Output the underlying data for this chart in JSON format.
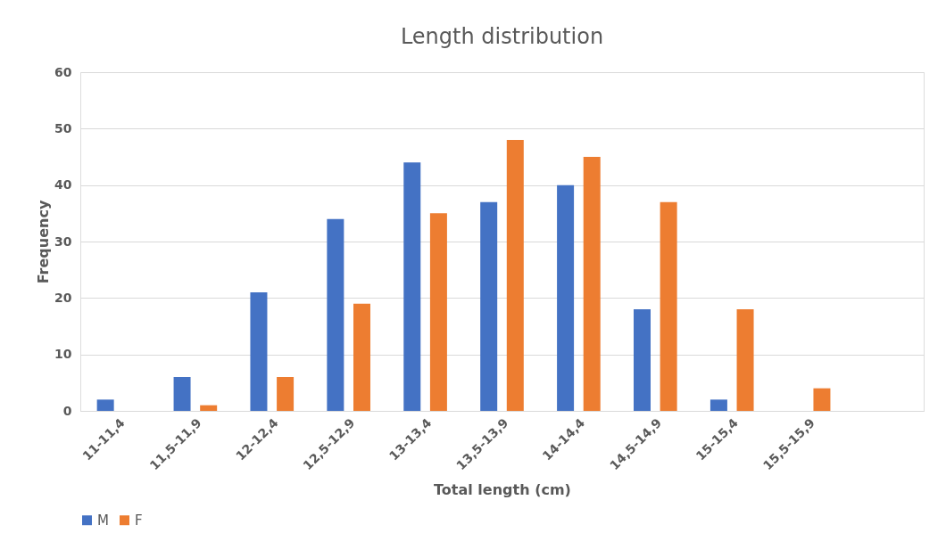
{
  "chart_data": {
    "type": "bar",
    "title": "Length distribution",
    "xlabel": "Total length (cm)",
    "ylabel": "Frequency",
    "categories": [
      "11-11,4",
      "11,5-11,9",
      "12-12,4",
      "12,5-12,9",
      "13-13,4",
      "13,5-13,9",
      "14-14,4",
      "14,5-14,9",
      "15-15,4",
      "15,5-15,9",
      null
    ],
    "series": [
      {
        "name": "M",
        "color": "#4472c4",
        "values": [
          2,
          6,
          21,
          34,
          44,
          37,
          40,
          18,
          2,
          null,
          null
        ]
      },
      {
        "name": "F",
        "color": "#ed7d31",
        "values": [
          null,
          1,
          6,
          19,
          35,
          48,
          45,
          37,
          18,
          4,
          null
        ]
      }
    ],
    "ylim": [
      0,
      60
    ],
    "yticks": [
      0,
      10,
      20,
      30,
      40,
      50,
      60
    ],
    "grid": "y",
    "legend": "bottom"
  }
}
